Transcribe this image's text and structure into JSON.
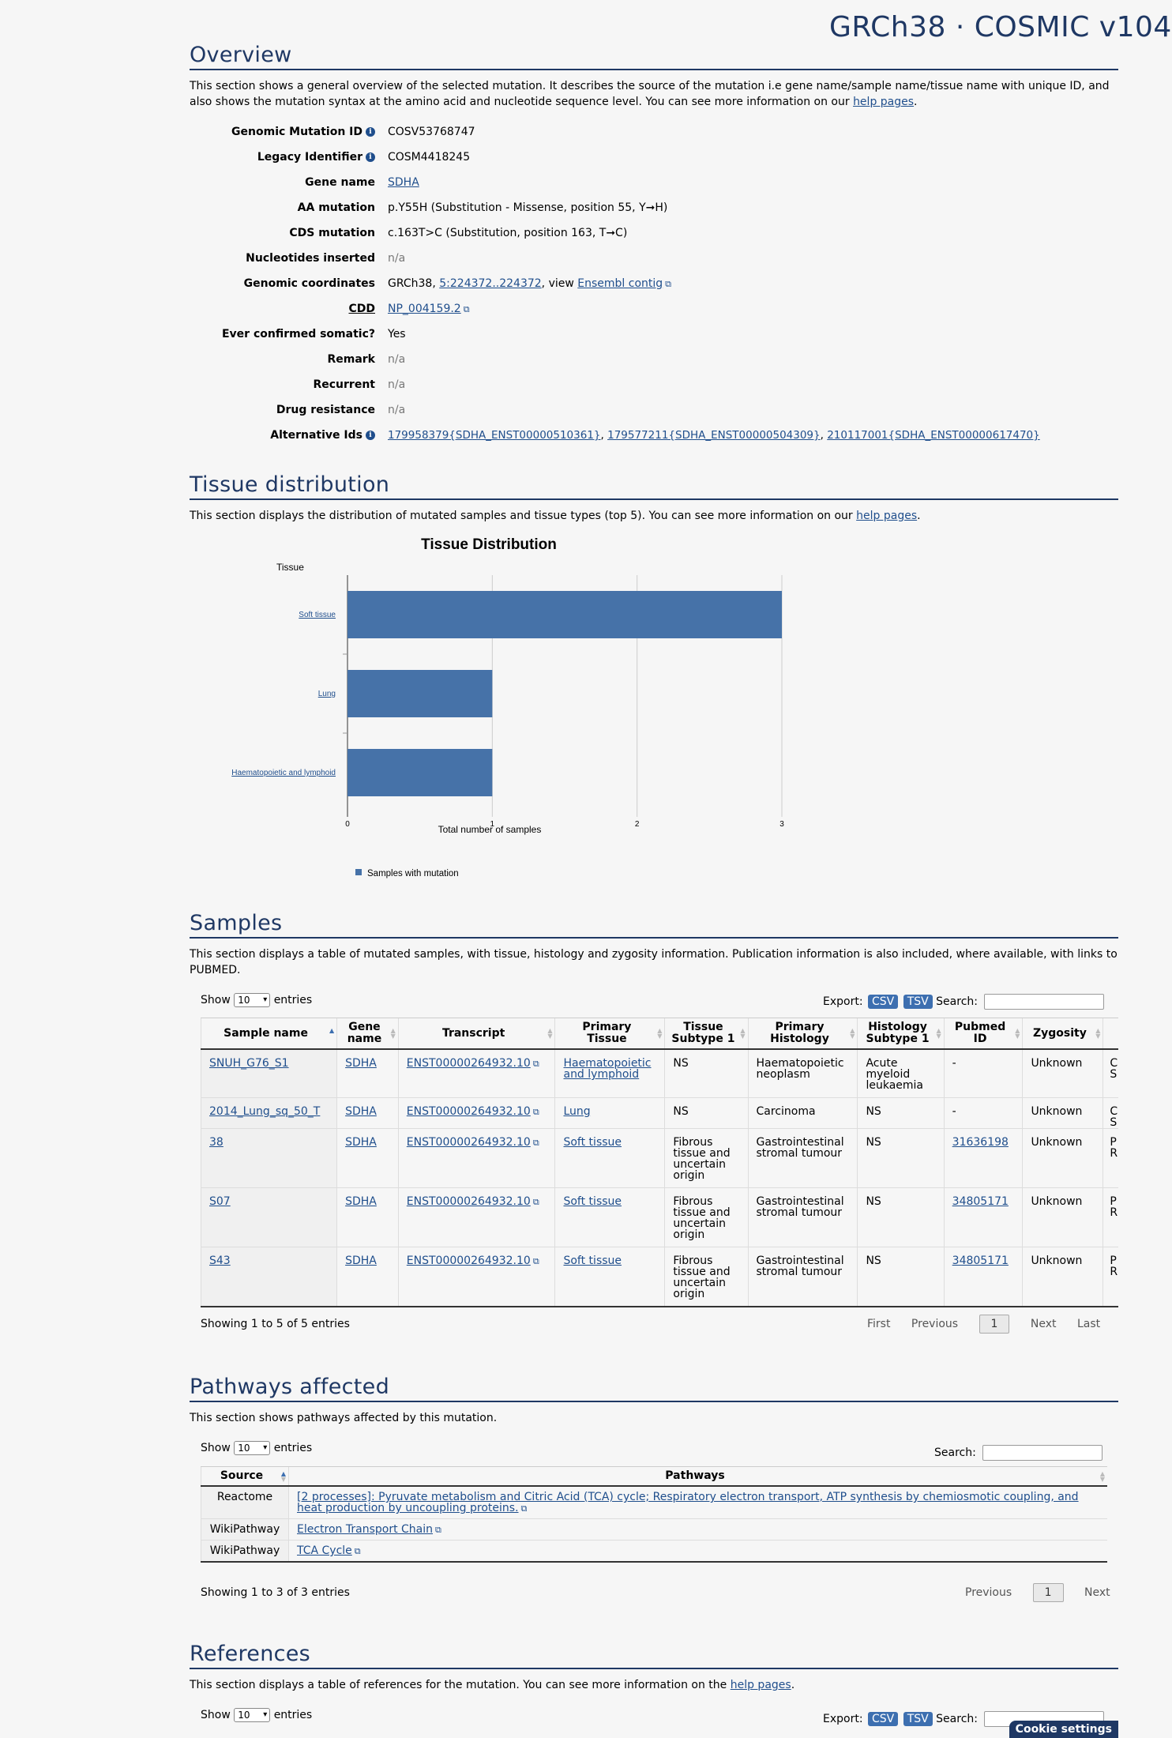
{
  "header": {
    "assembly": "GRCh38 · COSMIC v104"
  },
  "overview": {
    "title": "Overview",
    "description_start": "This section shows a general overview of the selected mutation. It describes the source of the mutation i.e gene name/sample name/tissue name with unique ID, and also shows the mutation syntax at the amino acid and nucleotide sequence level. You can see more information on our ",
    "help_link": "help pages",
    "description_end": ".",
    "fields": {
      "genomic_mutation_id": {
        "label": "Genomic Mutation ID",
        "value": "COSV53768747"
      },
      "legacy_identifier": {
        "label": "Legacy Identifier",
        "value": "COSM4418245"
      },
      "gene_name": {
        "label": "Gene name",
        "value": "SDHA"
      },
      "aa_mutation": {
        "label": "AA mutation",
        "value": "p.Y55H (Substitution - Missense, position 55, Y➞H)"
      },
      "cds_mutation": {
        "label": "CDS mutation",
        "value": "c.163T>C (Substitution, position 163, T➞C)"
      },
      "nucleotides_inserted": {
        "label": "Nucleotides inserted",
        "value": "n/a"
      },
      "genomic_coordinates": {
        "label": "Genomic coordinates",
        "assembly": "GRCh38, ",
        "coords": "5:224372..224372",
        "view": ", view ",
        "ensembl": "Ensembl contig"
      },
      "cdd": {
        "label": "CDD",
        "value": "NP_004159.2"
      },
      "ever_confirmed": {
        "label": "Ever confirmed somatic?",
        "value": "Yes"
      },
      "remark": {
        "label": "Remark",
        "value": "n/a"
      },
      "recurrent": {
        "label": "Recurrent",
        "value": "n/a"
      },
      "drug_resistance": {
        "label": "Drug resistance",
        "value": "n/a"
      },
      "alternative_ids": {
        "label": "Alternative Ids",
        "id1": "179958379{SDHA_ENST00000510361}",
        "id2": "179577211{SDHA_ENST00000504309}",
        "id3": "210117001{SDHA_ENST00000617470}",
        "sep": ", "
      }
    }
  },
  "tissue": {
    "title": "Tissue distribution",
    "description_start": "This section displays the distribution of mutated samples and tissue types (top 5). You can see more information on our ",
    "help_link": "help pages",
    "description_end": "."
  },
  "chart_data": {
    "type": "bar",
    "orientation": "horizontal",
    "title": "Tissue Distribution",
    "ylabel": "Tissue",
    "xlabel": "Total number of samples",
    "categories": [
      "Soft tissue",
      "Lung",
      "Haematopoietic and lymphoid"
    ],
    "series": [
      {
        "name": "Samples with mutation",
        "values": [
          3,
          1,
          1
        ],
        "color": "#4672a8"
      }
    ],
    "xlim": [
      0,
      3
    ],
    "xticks": [
      "0",
      "1",
      "2",
      "3"
    ],
    "grid": true,
    "legend": "bottom-left"
  },
  "samples": {
    "title": "Samples",
    "description": "This section displays a table of mutated samples, with tissue, histology and zygosity information. Publication information is also included, where available, with links to PUBMED.",
    "show": "Show",
    "entries_value": "10",
    "entries": "entries",
    "export": "Export:",
    "csv": "CSV",
    "tsv": "TSV",
    "search": "Search:",
    "columns": [
      {
        "l1": "Sample name",
        "l2": ""
      },
      {
        "l1": "Gene",
        "l2": "name"
      },
      {
        "l1": "Transcript",
        "l2": ""
      },
      {
        "l1": "Primary",
        "l2": "Tissue"
      },
      {
        "l1": "Tissue",
        "l2": "Subtype 1"
      },
      {
        "l1": "Primary",
        "l2": "Histology"
      },
      {
        "l1": "Histology",
        "l2": "Subtype 1"
      },
      {
        "l1": "Pubmed",
        "l2": "ID"
      },
      {
        "l1": "Zygosity",
        "l2": ""
      }
    ],
    "rows": [
      {
        "sample": "SNUH_G76_S1",
        "gene": "SDHA",
        "transcript": "ENST00000264932.10",
        "tissue": "Haematopoietic and lymphoid",
        "subtype": "NS",
        "histology": "Haematopoietic neoplasm",
        "hist_sub": "Acute myeloid leukaemia",
        "pubmed": "-",
        "zygosity": "Unknown",
        "extra": "C S"
      },
      {
        "sample": "2014_Lung_sq_50_T",
        "gene": "SDHA",
        "transcript": "ENST00000264932.10",
        "tissue": "Lung",
        "subtype": "NS",
        "histology": "Carcinoma",
        "hist_sub": "NS",
        "pubmed": "-",
        "zygosity": "Unknown",
        "extra": "C S"
      },
      {
        "sample": "38",
        "gene": "SDHA",
        "transcript": "ENST00000264932.10",
        "tissue": "Soft tissue",
        "subtype": "Fibrous tissue and uncertain origin",
        "histology": "Gastrointestinal stromal tumour",
        "hist_sub": "NS",
        "pubmed": "31636198",
        "zygosity": "Unknown",
        "extra": "P R"
      },
      {
        "sample": "S07",
        "gene": "SDHA",
        "transcript": "ENST00000264932.10",
        "tissue": "Soft tissue",
        "subtype": "Fibrous tissue and uncertain origin",
        "histology": "Gastrointestinal stromal tumour",
        "hist_sub": "NS",
        "pubmed": "34805171",
        "zygosity": "Unknown",
        "extra": "P R"
      },
      {
        "sample": "S43",
        "gene": "SDHA",
        "transcript": "ENST00000264932.10",
        "tissue": "Soft tissue",
        "subtype": "Fibrous tissue and uncertain origin",
        "histology": "Gastrointestinal stromal tumour",
        "hist_sub": "NS",
        "pubmed": "34805171",
        "zygosity": "Unknown",
        "extra": "P R"
      }
    ],
    "info": "Showing 1 to 5 of 5 entries",
    "pager": {
      "first": "First",
      "previous": "Previous",
      "current": "1",
      "next": "Next",
      "last": "Last"
    }
  },
  "pathways": {
    "title": "Pathways affected",
    "description": "This section shows pathways affected by this mutation.",
    "show": "Show",
    "entries_value": "10",
    "entries": "entries",
    "search": "Search:",
    "columns": {
      "source": "Source",
      "pathways": "Pathways"
    },
    "rows": [
      {
        "source": "Reactome",
        "pathway": "[2 processes]: Pyruvate metabolism and Citric Acid (TCA) cycle; Respiratory electron transport, ATP synthesis by chemiosmotic coupling, and heat production by uncoupling proteins."
      },
      {
        "source": "WikiPathway",
        "pathway": "Electron Transport Chain"
      },
      {
        "source": "WikiPathway",
        "pathway": "TCA Cycle"
      }
    ],
    "info": "Showing 1 to 3 of 3 entries",
    "pager": {
      "previous": "Previous",
      "current": "1",
      "next": "Next"
    }
  },
  "references": {
    "title": "References",
    "description_start": "This section displays a table of references for the mutation. You can see more information on the ",
    "help_link": "help pages",
    "description_end": ".",
    "show": "Show",
    "entries_value": "10",
    "entries": "entries",
    "export": "Export:",
    "csv": "CSV",
    "tsv": "TSV",
    "search": "Search:"
  },
  "cookie": {
    "label": "Cookie settings"
  }
}
